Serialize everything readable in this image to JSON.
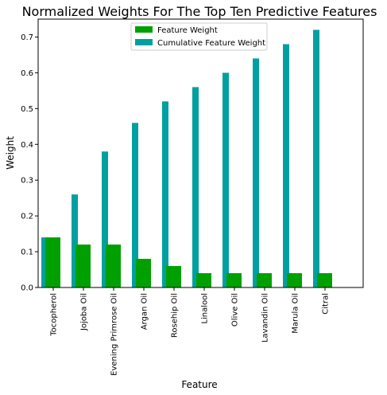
{
  "chart_data": {
    "type": "bar",
    "title": "Normalized Weights For The Top Ten Predictive Features",
    "xlabel": "Feature",
    "ylabel": "Weight",
    "ylim": [
      0,
      0.75
    ],
    "yticks": [
      0.0,
      0.1,
      0.2,
      0.3,
      0.4,
      0.5,
      0.6,
      0.7
    ],
    "ytick_labels": [
      "0.0",
      "0.1",
      "0.2",
      "0.3",
      "0.4",
      "0.5",
      "0.6",
      "0.7"
    ],
    "categories": [
      "Tocopherol",
      "Jojoba Oil",
      "Evening Primrose Oil",
      "Argan Oil",
      "Rosehip Oil",
      "Linalool",
      "Olive Oil",
      "Lavandin Oil",
      "Marula Oil",
      "Citral"
    ],
    "series": [
      {
        "name": "Feature Weight",
        "color": "#00a000",
        "values": [
          0.14,
          0.12,
          0.12,
          0.08,
          0.06,
          0.04,
          0.04,
          0.04,
          0.04,
          0.04
        ]
      },
      {
        "name": "Cumulative Feature Weight",
        "color": "#00a0a0",
        "values": [
          0.14,
          0.26,
          0.38,
          0.46,
          0.52,
          0.56,
          0.6,
          0.64,
          0.68,
          0.72
        ]
      }
    ],
    "legend_position": "top-center",
    "grid": false
  }
}
